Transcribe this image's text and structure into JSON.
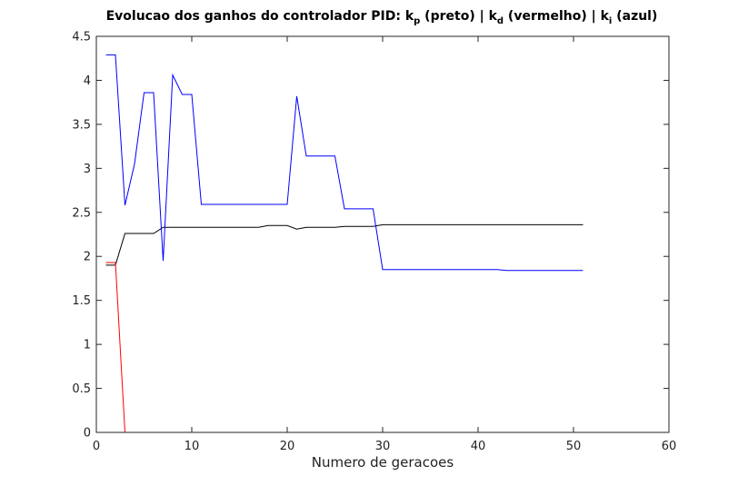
{
  "chart_data": {
    "type": "line",
    "title": {
      "prefix": "Evolucao dos ganhos do controlador PID: k",
      "kp_sub": "p",
      "kp_desc": " (preto) | k",
      "kd_sub": "d",
      "kd_desc": " (vermelho) | k",
      "ki_sub": "i",
      "ki_desc": " (azul)"
    },
    "xlabel": "Numero de geracoes",
    "ylabel": "",
    "xlim": [
      0,
      60
    ],
    "ylim": [
      0,
      4.5
    ],
    "xticks": [
      0,
      10,
      20,
      30,
      40,
      50,
      60
    ],
    "yticks": [
      0,
      0.5,
      1,
      1.5,
      2,
      2.5,
      3,
      3.5,
      4,
      4.5
    ],
    "xtick_labels": [
      "0",
      "10",
      "20",
      "30",
      "40",
      "50",
      "60"
    ],
    "ytick_labels": [
      "0",
      "0.5",
      "1",
      "1.5",
      "2",
      "2.5",
      "3",
      "3.5",
      "4",
      "4.5"
    ],
    "grid": false,
    "series": [
      {
        "color": "#000000",
        "x": [
          1,
          2,
          3,
          4,
          5,
          6,
          7,
          8,
          9,
          10,
          11,
          12,
          13,
          14,
          15,
          16,
          17,
          18,
          19,
          20,
          21,
          22,
          23,
          24,
          25,
          26,
          27,
          28,
          29,
          30,
          31,
          35,
          40,
          45,
          51
        ],
        "y": [
          1.9,
          1.9,
          2.26,
          2.26,
          2.26,
          2.26,
          2.33,
          2.33,
          2.33,
          2.33,
          2.33,
          2.33,
          2.33,
          2.33,
          2.33,
          2.33,
          2.33,
          2.35,
          2.35,
          2.35,
          2.31,
          2.33,
          2.33,
          2.33,
          2.33,
          2.34,
          2.34,
          2.34,
          2.34,
          2.36,
          2.36,
          2.36,
          2.36,
          2.36,
          2.36
        ]
      },
      {
        "color": "#ff0000",
        "x": [
          1,
          2,
          3,
          4,
          10,
          20,
          30,
          40,
          51
        ],
        "y": [
          1.93,
          1.93,
          0,
          0,
          0,
          0,
          0,
          0,
          0
        ]
      },
      {
        "color": "#0000ff",
        "x": [
          1,
          2,
          3,
          4,
          5,
          6,
          7,
          8,
          9,
          10,
          11,
          12,
          15,
          18,
          20,
          21,
          22,
          23,
          24,
          25,
          26,
          27,
          28,
          29,
          30,
          31,
          35,
          40,
          42,
          43,
          45,
          51
        ],
        "y": [
          4.29,
          4.29,
          2.58,
          3.05,
          3.86,
          3.86,
          1.95,
          4.06,
          3.84,
          3.84,
          2.59,
          2.59,
          2.59,
          2.59,
          2.59,
          3.82,
          3.14,
          3.14,
          3.14,
          3.14,
          2.54,
          2.54,
          2.54,
          2.54,
          1.85,
          1.85,
          1.85,
          1.85,
          1.85,
          1.84,
          1.84,
          1.84
        ]
      }
    ]
  }
}
